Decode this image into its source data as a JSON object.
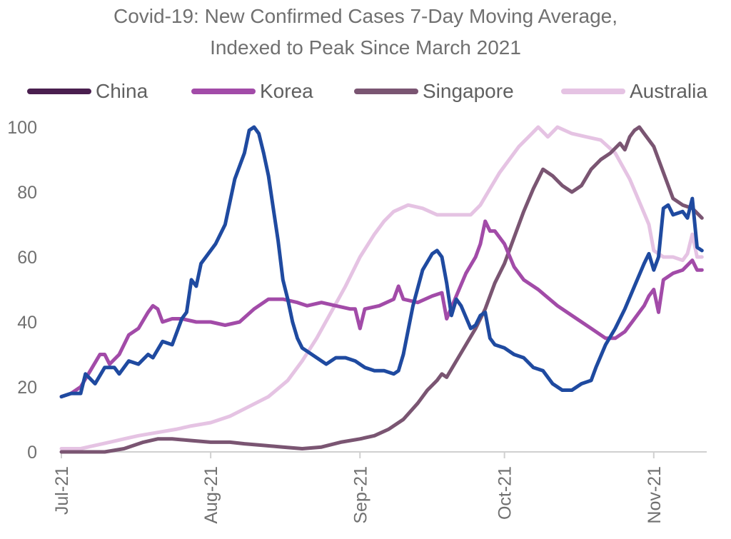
{
  "title_line1": "Covid-19: New Confirmed Cases 7-Day Moving Average,",
  "title_line2": "Indexed to Peak Since March 2021",
  "legend": [
    {
      "name": "China",
      "color": "#4a1f4f"
    },
    {
      "name": "Korea",
      "color": "#a24ba8"
    },
    {
      "name": "Singapore",
      "color": "#7a5572"
    },
    {
      "name": "Australia",
      "color": "#e5c3e3"
    }
  ],
  "chart_data": {
    "type": "line",
    "title": "Covid-19: New Confirmed Cases 7-Day Moving Average, Indexed to Peak Since March 2021",
    "xlabel": "",
    "ylabel": "",
    "ylim": [
      0,
      100
    ],
    "y_ticks": [
      0,
      20,
      40,
      60,
      80,
      100
    ],
    "xlim": [
      "2021-07-01",
      "2021-11-12"
    ],
    "x_ticks": [
      {
        "date": "2021-07-01",
        "label": "Jul-21"
      },
      {
        "date": "2021-08-01",
        "label": "Aug-21"
      },
      {
        "date": "2021-09-01",
        "label": "Sep-21"
      },
      {
        "date": "2021-10-01",
        "label": "Oct-21"
      },
      {
        "date": "2021-11-01",
        "label": "Nov-21"
      }
    ],
    "grid": false,
    "legend_position": "top",
    "series": [
      {
        "name": "China",
        "color": "#1f4aa0",
        "points": [
          [
            "2021-07-01",
            17
          ],
          [
            "2021-07-03",
            18
          ],
          [
            "2021-07-05",
            18
          ],
          [
            "2021-07-06",
            24
          ],
          [
            "2021-07-08",
            21
          ],
          [
            "2021-07-10",
            26
          ],
          [
            "2021-07-12",
            26
          ],
          [
            "2021-07-13",
            24
          ],
          [
            "2021-07-15",
            28
          ],
          [
            "2021-07-17",
            27
          ],
          [
            "2021-07-19",
            30
          ],
          [
            "2021-07-20",
            29
          ],
          [
            "2021-07-22",
            34
          ],
          [
            "2021-07-24",
            33
          ],
          [
            "2021-07-26",
            41
          ],
          [
            "2021-07-27",
            43
          ],
          [
            "2021-07-28",
            53
          ],
          [
            "2021-07-29",
            51
          ],
          [
            "2021-07-30",
            58
          ],
          [
            "2021-07-31",
            60
          ],
          [
            "2021-08-02",
            64
          ],
          [
            "2021-08-04",
            70
          ],
          [
            "2021-08-06",
            84
          ],
          [
            "2021-08-08",
            92
          ],
          [
            "2021-08-09",
            99
          ],
          [
            "2021-08-10",
            100
          ],
          [
            "2021-08-11",
            98
          ],
          [
            "2021-08-12",
            92
          ],
          [
            "2021-08-13",
            85
          ],
          [
            "2021-08-14",
            75
          ],
          [
            "2021-08-15",
            65
          ],
          [
            "2021-08-16",
            53
          ],
          [
            "2021-08-17",
            47
          ],
          [
            "2021-08-18",
            40
          ],
          [
            "2021-08-19",
            35
          ],
          [
            "2021-08-20",
            32
          ],
          [
            "2021-08-21",
            31
          ],
          [
            "2021-08-23",
            29
          ],
          [
            "2021-08-25",
            27
          ],
          [
            "2021-08-27",
            29
          ],
          [
            "2021-08-29",
            29
          ],
          [
            "2021-08-31",
            28
          ],
          [
            "2021-09-02",
            26
          ],
          [
            "2021-09-04",
            25
          ],
          [
            "2021-09-06",
            25
          ],
          [
            "2021-09-08",
            24
          ],
          [
            "2021-09-09",
            25
          ],
          [
            "2021-09-10",
            30
          ],
          [
            "2021-09-12",
            45
          ],
          [
            "2021-09-14",
            56
          ],
          [
            "2021-09-16",
            61
          ],
          [
            "2021-09-17",
            62
          ],
          [
            "2021-09-18",
            60
          ],
          [
            "2021-09-19",
            52
          ],
          [
            "2021-09-20",
            42
          ],
          [
            "2021-09-21",
            47
          ],
          [
            "2021-09-22",
            45
          ],
          [
            "2021-09-24",
            38
          ],
          [
            "2021-09-25",
            39
          ],
          [
            "2021-09-26",
            42
          ],
          [
            "2021-09-27",
            43
          ],
          [
            "2021-09-28",
            35
          ],
          [
            "2021-09-29",
            33
          ],
          [
            "2021-10-01",
            32
          ],
          [
            "2021-10-03",
            30
          ],
          [
            "2021-10-05",
            29
          ],
          [
            "2021-10-07",
            26
          ],
          [
            "2021-10-09",
            25
          ],
          [
            "2021-10-11",
            21
          ],
          [
            "2021-10-13",
            19
          ],
          [
            "2021-10-15",
            19
          ],
          [
            "2021-10-17",
            21
          ],
          [
            "2021-10-19",
            22
          ],
          [
            "2021-10-20",
            26
          ],
          [
            "2021-10-22",
            33
          ],
          [
            "2021-10-24",
            38
          ],
          [
            "2021-10-26",
            44
          ],
          [
            "2021-10-28",
            51
          ],
          [
            "2021-10-30",
            58
          ],
          [
            "2021-10-31",
            61
          ],
          [
            "2021-11-01",
            56
          ],
          [
            "2021-11-02",
            60
          ],
          [
            "2021-11-03",
            75
          ],
          [
            "2021-11-04",
            76
          ],
          [
            "2021-11-05",
            73
          ],
          [
            "2021-11-07",
            74
          ],
          [
            "2021-11-08",
            72
          ],
          [
            "2021-11-09",
            78
          ],
          [
            "2021-11-10",
            63
          ],
          [
            "2021-11-11",
            62
          ]
        ]
      },
      {
        "name": "Korea",
        "color": "#a24ba8",
        "points": [
          [
            "2021-07-01",
            17
          ],
          [
            "2021-07-03",
            18
          ],
          [
            "2021-07-05",
            20
          ],
          [
            "2021-07-07",
            25
          ],
          [
            "2021-07-09",
            30
          ],
          [
            "2021-07-10",
            30
          ],
          [
            "2021-07-11",
            27
          ],
          [
            "2021-07-13",
            30
          ],
          [
            "2021-07-15",
            36
          ],
          [
            "2021-07-17",
            38
          ],
          [
            "2021-07-19",
            43
          ],
          [
            "2021-07-20",
            45
          ],
          [
            "2021-07-21",
            44
          ],
          [
            "2021-07-22",
            40
          ],
          [
            "2021-07-24",
            41
          ],
          [
            "2021-07-26",
            41
          ],
          [
            "2021-07-29",
            40
          ],
          [
            "2021-08-01",
            40
          ],
          [
            "2021-08-04",
            39
          ],
          [
            "2021-08-07",
            40
          ],
          [
            "2021-08-10",
            44
          ],
          [
            "2021-08-13",
            47
          ],
          [
            "2021-08-16",
            47
          ],
          [
            "2021-08-19",
            46
          ],
          [
            "2021-08-21",
            45
          ],
          [
            "2021-08-24",
            46
          ],
          [
            "2021-08-27",
            45
          ],
          [
            "2021-08-30",
            44
          ],
          [
            "2021-08-31",
            44
          ],
          [
            "2021-09-01",
            38
          ],
          [
            "2021-09-02",
            44
          ],
          [
            "2021-09-05",
            45
          ],
          [
            "2021-09-08",
            47
          ],
          [
            "2021-09-09",
            51
          ],
          [
            "2021-09-10",
            47
          ],
          [
            "2021-09-13",
            46
          ],
          [
            "2021-09-16",
            48
          ],
          [
            "2021-09-18",
            49
          ],
          [
            "2021-09-19",
            41
          ],
          [
            "2021-09-21",
            48
          ],
          [
            "2021-09-23",
            55
          ],
          [
            "2021-09-25",
            60
          ],
          [
            "2021-09-26",
            64
          ],
          [
            "2021-09-27",
            71
          ],
          [
            "2021-09-28",
            68
          ],
          [
            "2021-09-29",
            68
          ],
          [
            "2021-10-01",
            64
          ],
          [
            "2021-10-03",
            57
          ],
          [
            "2021-10-05",
            53
          ],
          [
            "2021-10-08",
            50
          ],
          [
            "2021-10-12",
            45
          ],
          [
            "2021-10-16",
            41
          ],
          [
            "2021-10-19",
            38
          ],
          [
            "2021-10-22",
            35
          ],
          [
            "2021-10-24",
            35
          ],
          [
            "2021-10-26",
            37
          ],
          [
            "2021-10-28",
            41
          ],
          [
            "2021-10-30",
            45
          ],
          [
            "2021-10-31",
            48
          ],
          [
            "2021-11-01",
            50
          ],
          [
            "2021-11-02",
            43
          ],
          [
            "2021-11-03",
            53
          ],
          [
            "2021-11-05",
            55
          ],
          [
            "2021-11-07",
            56
          ],
          [
            "2021-11-09",
            59
          ],
          [
            "2021-11-10",
            56
          ],
          [
            "2021-11-11",
            56
          ]
        ]
      },
      {
        "name": "Singapore",
        "color": "#7a5572",
        "points": [
          [
            "2021-07-01",
            0
          ],
          [
            "2021-07-05",
            0
          ],
          [
            "2021-07-10",
            0
          ],
          [
            "2021-07-14",
            1
          ],
          [
            "2021-07-18",
            3
          ],
          [
            "2021-07-21",
            4
          ],
          [
            "2021-07-24",
            4
          ],
          [
            "2021-07-28",
            3.5
          ],
          [
            "2021-08-01",
            3
          ],
          [
            "2021-08-05",
            3
          ],
          [
            "2021-08-08",
            2.5
          ],
          [
            "2021-08-12",
            2
          ],
          [
            "2021-08-16",
            1.5
          ],
          [
            "2021-08-20",
            1
          ],
          [
            "2021-08-24",
            1.5
          ],
          [
            "2021-08-28",
            3
          ],
          [
            "2021-09-01",
            4
          ],
          [
            "2021-09-04",
            5
          ],
          [
            "2021-09-07",
            7
          ],
          [
            "2021-09-10",
            10
          ],
          [
            "2021-09-13",
            15
          ],
          [
            "2021-09-15",
            19
          ],
          [
            "2021-09-17",
            22
          ],
          [
            "2021-09-18",
            24
          ],
          [
            "2021-09-19",
            23
          ],
          [
            "2021-09-21",
            28
          ],
          [
            "2021-09-23",
            33
          ],
          [
            "2021-09-25",
            38
          ],
          [
            "2021-09-27",
            44
          ],
          [
            "2021-09-29",
            52
          ],
          [
            "2021-10-01",
            58
          ],
          [
            "2021-10-03",
            66
          ],
          [
            "2021-10-05",
            74
          ],
          [
            "2021-10-07",
            81
          ],
          [
            "2021-10-09",
            87
          ],
          [
            "2021-10-11",
            85
          ],
          [
            "2021-10-13",
            82
          ],
          [
            "2021-10-15",
            80
          ],
          [
            "2021-10-17",
            82
          ],
          [
            "2021-10-19",
            87
          ],
          [
            "2021-10-21",
            90
          ],
          [
            "2021-10-23",
            92
          ],
          [
            "2021-10-25",
            95
          ],
          [
            "2021-10-26",
            93
          ],
          [
            "2021-10-27",
            97
          ],
          [
            "2021-10-28",
            99
          ],
          [
            "2021-10-29",
            100
          ],
          [
            "2021-10-30",
            98
          ],
          [
            "2021-11-01",
            94
          ],
          [
            "2021-11-03",
            86
          ],
          [
            "2021-11-05",
            78
          ],
          [
            "2021-11-07",
            76
          ],
          [
            "2021-11-09",
            75
          ],
          [
            "2021-11-11",
            72
          ]
        ]
      },
      {
        "name": "Australia",
        "color": "#e5c3e3",
        "points": [
          [
            "2021-07-01",
            1
          ],
          [
            "2021-07-05",
            1
          ],
          [
            "2021-07-08",
            2
          ],
          [
            "2021-07-11",
            3
          ],
          [
            "2021-07-14",
            4
          ],
          [
            "2021-07-17",
            5
          ],
          [
            "2021-07-21",
            6
          ],
          [
            "2021-07-25",
            7
          ],
          [
            "2021-07-28",
            8
          ],
          [
            "2021-08-01",
            9
          ],
          [
            "2021-08-05",
            11
          ],
          [
            "2021-08-09",
            14
          ],
          [
            "2021-08-13",
            17
          ],
          [
            "2021-08-17",
            22
          ],
          [
            "2021-08-20",
            28
          ],
          [
            "2021-08-23",
            35
          ],
          [
            "2021-08-26",
            43
          ],
          [
            "2021-08-29",
            51
          ],
          [
            "2021-09-01",
            60
          ],
          [
            "2021-09-04",
            67
          ],
          [
            "2021-09-06",
            71
          ],
          [
            "2021-09-08",
            74
          ],
          [
            "2021-09-11",
            76
          ],
          [
            "2021-09-14",
            75
          ],
          [
            "2021-09-17",
            73
          ],
          [
            "2021-09-21",
            73
          ],
          [
            "2021-09-24",
            73
          ],
          [
            "2021-09-26",
            76
          ],
          [
            "2021-09-28",
            81
          ],
          [
            "2021-09-30",
            86
          ],
          [
            "2021-10-02",
            90
          ],
          [
            "2021-10-04",
            94
          ],
          [
            "2021-10-06",
            97
          ],
          [
            "2021-10-08",
            100
          ],
          [
            "2021-10-10",
            97
          ],
          [
            "2021-10-12",
            100
          ],
          [
            "2021-10-15",
            98
          ],
          [
            "2021-10-18",
            97
          ],
          [
            "2021-10-21",
            96
          ],
          [
            "2021-10-24",
            92
          ],
          [
            "2021-10-27",
            84
          ],
          [
            "2021-10-29",
            77
          ],
          [
            "2021-10-31",
            70
          ],
          [
            "2021-11-01",
            62
          ],
          [
            "2021-11-03",
            60
          ],
          [
            "2021-11-05",
            60
          ],
          [
            "2021-11-07",
            59
          ],
          [
            "2021-11-08",
            61
          ],
          [
            "2021-11-09",
            67
          ],
          [
            "2021-11-10",
            60
          ],
          [
            "2021-11-11",
            60
          ]
        ]
      }
    ]
  }
}
